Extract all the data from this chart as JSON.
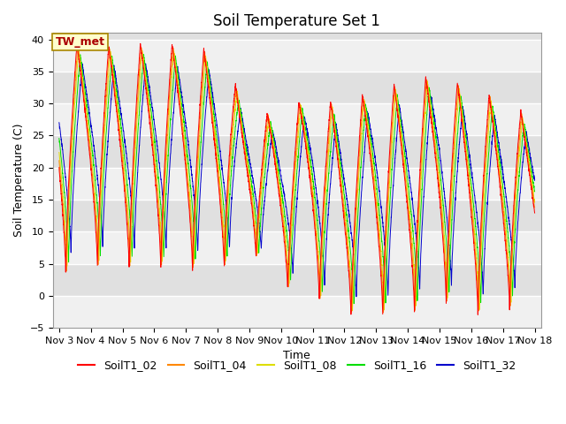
{
  "title": "Soil Temperature Set 1",
  "ylabel": "Soil Temperature (C)",
  "xlabel": "Time",
  "ylim": [
    -5,
    41
  ],
  "yticks": [
    -5,
    0,
    5,
    10,
    15,
    20,
    25,
    30,
    35,
    40
  ],
  "series_colors": {
    "SoilT1_02": "#ff0000",
    "SoilT1_04": "#ff8800",
    "SoilT1_08": "#dddd00",
    "SoilT1_16": "#00dd00",
    "SoilT1_32": "#0000cc"
  },
  "series_order": [
    "SoilT1_32",
    "SoilT1_16",
    "SoilT1_08",
    "SoilT1_04",
    "SoilT1_02"
  ],
  "legend_order": [
    "SoilT1_02",
    "SoilT1_04",
    "SoilT1_08",
    "SoilT1_16",
    "SoilT1_32"
  ],
  "tw_met_label": "TW_met",
  "tw_met_box_color": "#ffffcc",
  "tw_met_border_color": "#aa8800",
  "tw_met_text_color": "#aa0000",
  "bg_color": "#ffffff",
  "plot_bg_color": "#e0e0e0",
  "band_color": "#f0f0f0",
  "grid_color": "#ffffff",
  "title_fontsize": 12,
  "axis_label_fontsize": 9,
  "tick_fontsize": 8,
  "legend_fontsize": 9
}
